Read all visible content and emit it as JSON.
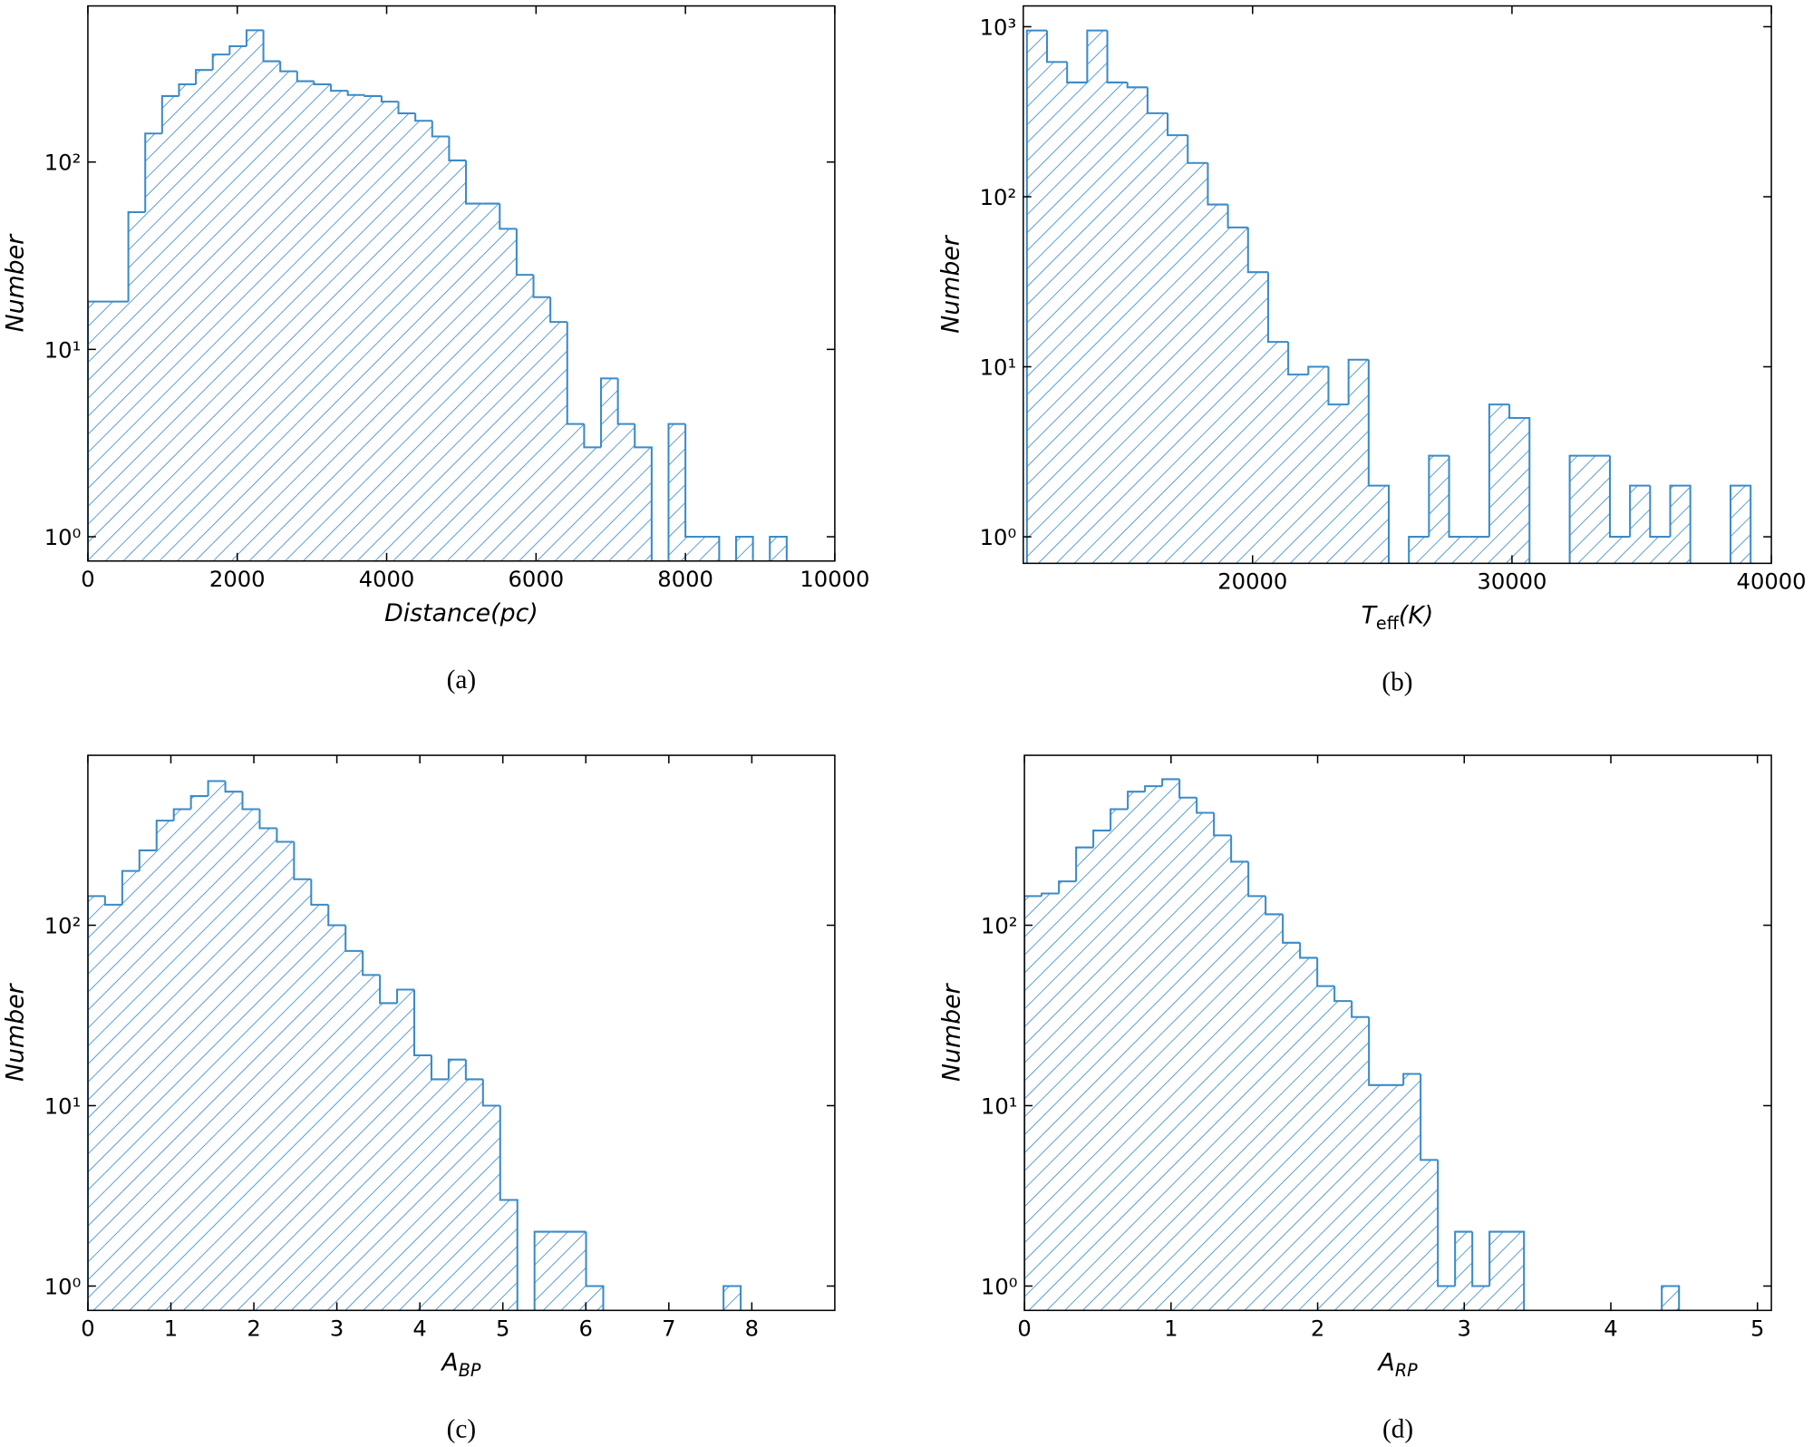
{
  "chart_data": [
    {
      "type": "histogram",
      "color": "#3b8bc8",
      "log_y": true,
      "bins": [
        0,
        542,
        768,
        994,
        1220,
        1446,
        1672,
        1898,
        2124,
        2350,
        2576,
        2802,
        3028,
        3254,
        3480,
        3706,
        3932,
        4158,
        4384,
        4610,
        4836,
        5062,
        5288,
        5514,
        5740,
        5966,
        6192,
        6418,
        6644,
        6870,
        7096,
        7322,
        7548,
        7774,
        8000,
        8226,
        8452,
        8678,
        8904,
        9130,
        9356
      ],
      "counts": [
        18,
        54,
        142,
        225,
        260,
        310,
        375,
        415,
        505,
        345,
        305,
        270,
        260,
        240,
        228,
        225,
        210,
        182,
        166,
        137,
        102,
        60,
        60,
        44,
        25,
        19,
        14,
        4,
        3,
        7,
        4,
        3,
        0,
        4,
        1,
        1,
        0,
        1,
        0,
        1
      ],
      "xlim": [
        0,
        10000
      ],
      "ylim": [
        0.742,
        681
      ],
      "xticks": [
        0,
        2000,
        4000,
        6000,
        8000,
        10000
      ],
      "yticks": [
        {
          "value": 1,
          "label": "10⁰"
        },
        {
          "value": 10,
          "label": "10¹"
        },
        {
          "value": 100,
          "label": "10²"
        }
      ],
      "xlabel": [
        {
          "text": "Distance(pc)"
        }
      ],
      "ylabel": "Number",
      "caption": "(a)"
    },
    {
      "type": "histogram",
      "color": "#3b8bc8",
      "log_y": true,
      "bins": [
        11300,
        12075,
        12850,
        13625,
        14400,
        15175,
        15950,
        16725,
        17500,
        18275,
        19050,
        19825,
        20600,
        21375,
        22150,
        22925,
        23700,
        24475,
        25250,
        26025,
        26800,
        27575,
        28350,
        29125,
        29900,
        30675,
        31450,
        32225,
        33000,
        33775,
        34550,
        35325,
        36100,
        36875,
        37650,
        38425,
        39200
      ],
      "counts": [
        950,
        620,
        470,
        950,
        470,
        440,
        310,
        230,
        158,
        90,
        66,
        36,
        14,
        9,
        10,
        6,
        11,
        2,
        0,
        1,
        3,
        1,
        1,
        6,
        5,
        0,
        0,
        3,
        3,
        1,
        2,
        1,
        2,
        0,
        0,
        2
      ],
      "xlim": [
        11160,
        40000
      ],
      "ylim": [
        0.698,
        1325
      ],
      "xticks": [
        20000,
        30000,
        40000
      ],
      "yticks": [
        {
          "value": 1,
          "label": "10⁰"
        },
        {
          "value": 10,
          "label": "10¹"
        },
        {
          "value": 100,
          "label": "10²"
        },
        {
          "value": 1000,
          "label": "10³"
        }
      ],
      "xlabel": [
        {
          "text": "T"
        },
        {
          "text": "eff",
          "sub": true,
          "italic": false
        },
        {
          "text": "(K)"
        }
      ],
      "ylabel": "Number",
      "caption": "(b)"
    },
    {
      "type": "histogram",
      "color": "#3b8bc8",
      "log_y": true,
      "bins": [
        0,
        0.207,
        0.414,
        0.621,
        0.828,
        1.035,
        1.242,
        1.449,
        1.656,
        1.863,
        2.07,
        2.277,
        2.484,
        2.691,
        2.898,
        3.105,
        3.312,
        3.519,
        3.726,
        3.933,
        4.14,
        4.347,
        4.554,
        4.761,
        4.968,
        5.175,
        5.382,
        5.589,
        5.796,
        6.003,
        6.21,
        6.417,
        6.624,
        6.831,
        7.038,
        7.245,
        7.452,
        7.659,
        7.866
      ],
      "counts": [
        145,
        130,
        200,
        260,
        380,
        440,
        520,
        630,
        550,
        440,
        345,
        290,
        180,
        130,
        100,
        72,
        53,
        37,
        44,
        19,
        14,
        18,
        14,
        10,
        3,
        0,
        2,
        2,
        2,
        1,
        0,
        0,
        0,
        0,
        0,
        0,
        0,
        1
      ],
      "xlim": [
        0,
        9.0
      ],
      "ylim": [
        0.733,
        875
      ],
      "xticks": [
        0,
        1,
        2,
        3,
        4,
        5,
        6,
        7,
        8
      ],
      "yticks": [
        {
          "value": 1,
          "label": "10⁰"
        },
        {
          "value": 10,
          "label": "10¹"
        },
        {
          "value": 100,
          "label": "10²"
        }
      ],
      "xlabel": [
        {
          "text": "A"
        },
        {
          "text": "BP",
          "sub": true
        }
      ],
      "ylabel": "Number",
      "caption": "(c)"
    },
    {
      "type": "histogram",
      "color": "#3b8bc8",
      "log_y": true,
      "bins": [
        0,
        0.1175,
        0.235,
        0.3525,
        0.47,
        0.5875,
        0.705,
        0.8225,
        0.94,
        1.0575,
        1.175,
        1.2925,
        1.41,
        1.5275,
        1.645,
        1.7625,
        1.88,
        1.9975,
        2.115,
        2.2325,
        2.35,
        2.4675,
        2.585,
        2.7025,
        2.82,
        2.9375,
        3.055,
        3.1725,
        3.29,
        3.4075,
        3.525,
        3.6425,
        3.76,
        3.8775,
        3.995,
        4.1125,
        4.23,
        4.3475,
        4.465
      ],
      "counts": [
        145,
        150,
        175,
        270,
        335,
        440,
        550,
        590,
        645,
        510,
        420,
        315,
        225,
        145,
        115,
        80,
        66,
        46,
        38,
        31,
        13,
        13,
        15,
        5,
        1,
        2,
        1,
        2,
        2,
        0,
        0,
        0,
        0,
        0,
        0,
        0,
        0,
        1
      ],
      "xlim": [
        0,
        5.095
      ],
      "ylim": [
        0.733,
        875
      ],
      "xticks": [
        0,
        1,
        2,
        3,
        4,
        5
      ],
      "yticks": [
        {
          "value": 1,
          "label": "10⁰"
        },
        {
          "value": 10,
          "label": "10¹"
        },
        {
          "value": 100,
          "label": "10²"
        }
      ],
      "xlabel": [
        {
          "text": "A"
        },
        {
          "text": "RP",
          "sub": true
        }
      ],
      "ylabel": "Number",
      "caption": "(d)"
    }
  ]
}
